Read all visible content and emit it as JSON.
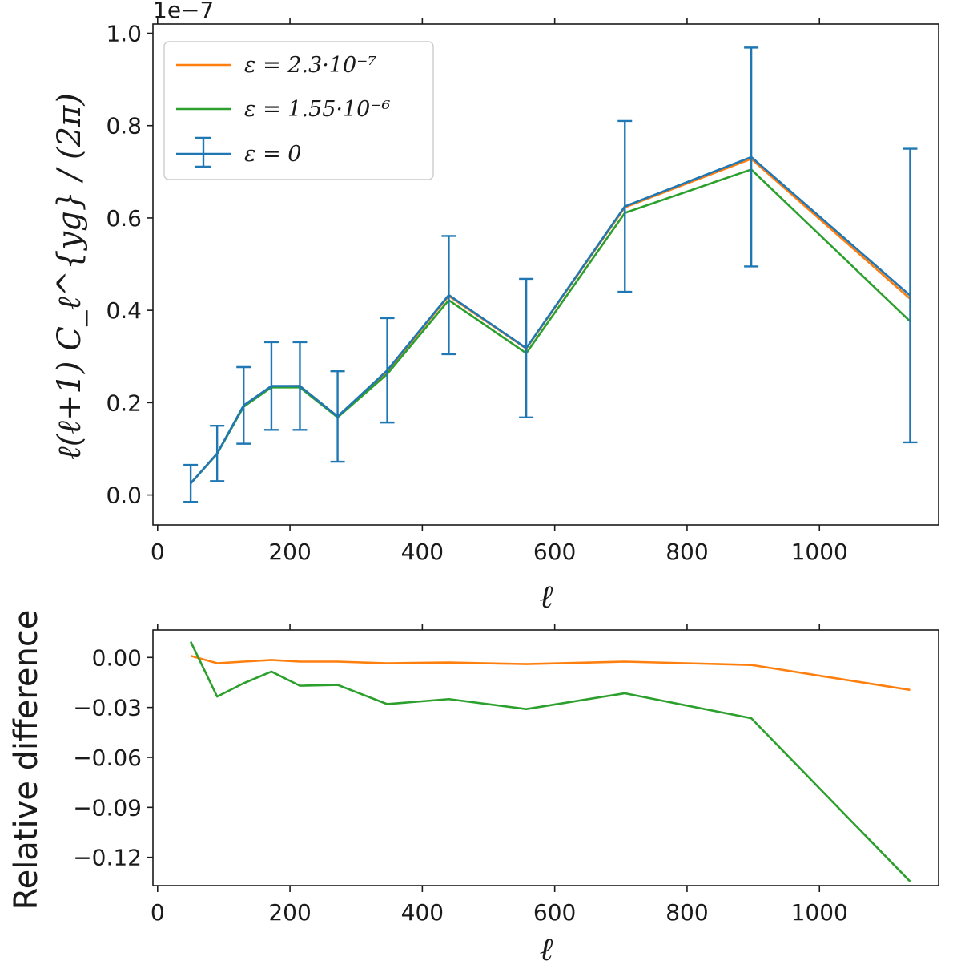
{
  "colors": {
    "orange": "#ff7f0e",
    "green": "#2ca02c",
    "blue": "#1f77b4",
    "axis": "#1a1a1a"
  },
  "chart_data": [
    {
      "type": "line",
      "title": "",
      "xlabel": "ℓ",
      "ylabel": "ℓ(ℓ+1) C_ℓ^{yg} / (2π)",
      "y_offset_label": "1e−7",
      "xlim": [
        -7,
        1180
      ],
      "ylim": [
        -0.065,
        1.02
      ],
      "xticks": [
        0,
        200,
        400,
        600,
        800,
        1000
      ],
      "xtick_labels": [
        "0",
        "200",
        "400",
        "600",
        "800",
        "1000"
      ],
      "yticks": [
        0.0,
        0.2,
        0.4,
        0.6,
        0.8,
        1.0
      ],
      "ytick_labels": [
        "0.0",
        "0.2",
        "0.4",
        "0.6",
        "0.8",
        "1.0"
      ],
      "legend_position": "upper-left",
      "x": [
        50,
        90,
        130,
        172,
        215,
        272,
        347,
        440,
        557,
        706,
        897,
        1137
      ],
      "series": [
        {
          "name": "ε = 2.3·10⁻⁷",
          "color": "orange",
          "values": [
            0.025,
            0.09,
            0.193,
            0.235,
            0.236,
            0.17,
            0.268,
            0.431,
            0.317,
            0.623,
            0.728,
            0.425
          ]
        },
        {
          "name": "ε = 1.55·10⁻⁶",
          "color": "green",
          "values": [
            0.025,
            0.089,
            0.191,
            0.233,
            0.233,
            0.168,
            0.262,
            0.422,
            0.307,
            0.611,
            0.705,
            0.376
          ]
        },
        {
          "name": "ε = 0",
          "color": "blue",
          "errorbars": true,
          "values": [
            0.025,
            0.09,
            0.194,
            0.236,
            0.236,
            0.17,
            0.27,
            0.433,
            0.318,
            0.625,
            0.732,
            0.432
          ],
          "errors": [
            0.04,
            0.06,
            0.083,
            0.095,
            0.095,
            0.098,
            0.113,
            0.128,
            0.15,
            0.185,
            0.237,
            0.318
          ]
        }
      ]
    },
    {
      "type": "line",
      "title": "",
      "xlabel": "ℓ",
      "ylabel": "Relative difference",
      "xlim": [
        -7,
        1180
      ],
      "ylim": [
        -0.137,
        0.0165
      ],
      "xticks": [
        0,
        200,
        400,
        600,
        800,
        1000
      ],
      "xtick_labels": [
        "0",
        "200",
        "400",
        "600",
        "800",
        "1000"
      ],
      "yticks": [
        0.0,
        -0.03,
        -0.06,
        -0.09,
        -0.12
      ],
      "ytick_labels": [
        "0.00",
        "−0.03",
        "−0.06",
        "−0.09",
        "−0.12"
      ],
      "x": [
        50,
        90,
        130,
        172,
        215,
        272,
        347,
        440,
        557,
        706,
        897,
        1137
      ],
      "series": [
        {
          "name": "ε = 2.3·10⁻⁷",
          "color": "orange",
          "values": [
            0.001,
            -0.0035,
            -0.0025,
            -0.0015,
            -0.0025,
            -0.0025,
            -0.0035,
            -0.003,
            -0.004,
            -0.0025,
            -0.0045,
            -0.0195
          ]
        },
        {
          "name": "ε = 1.55·10⁻⁶",
          "color": "green",
          "values": [
            0.0095,
            -0.0235,
            -0.0155,
            -0.0085,
            -0.017,
            -0.0165,
            -0.028,
            -0.025,
            -0.031,
            -0.0215,
            -0.0365,
            -0.1345
          ]
        }
      ]
    }
  ]
}
